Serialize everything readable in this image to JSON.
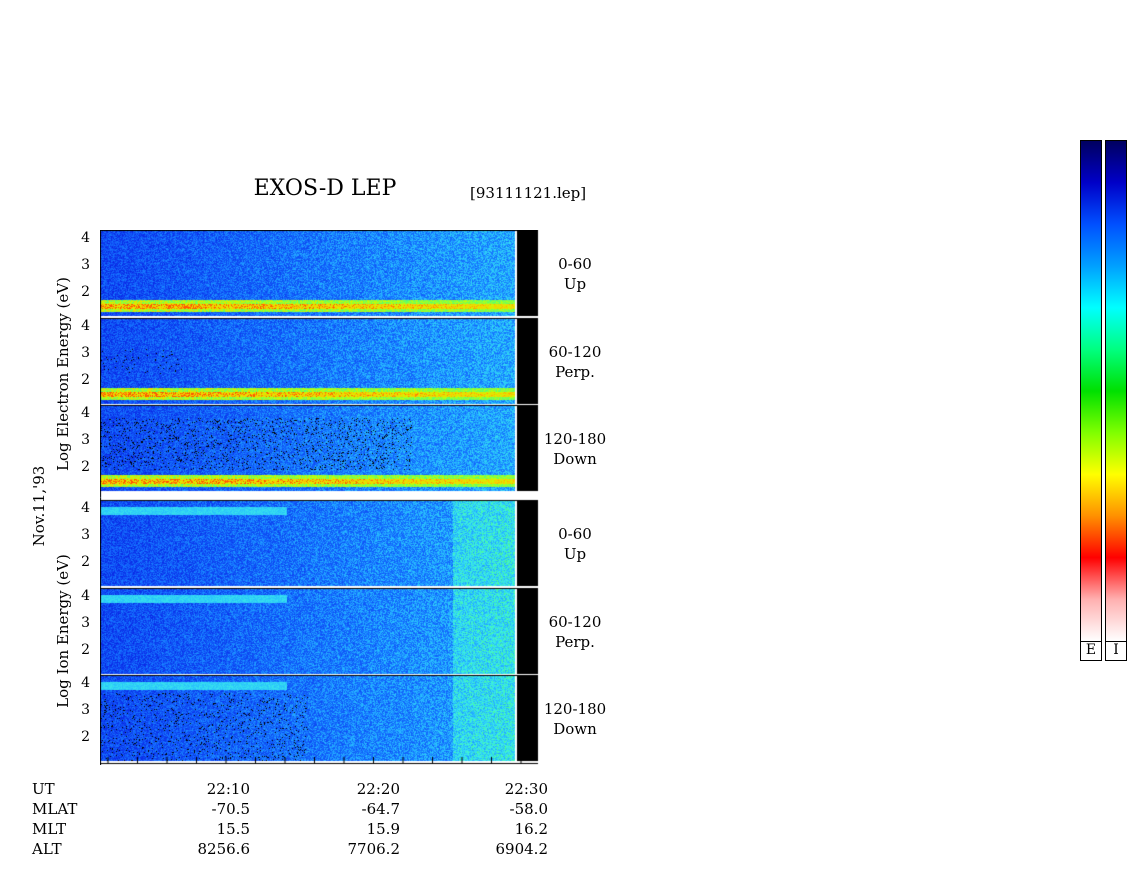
{
  "header": {
    "title": "EXOS-D LEP",
    "filename": "[93111121.lep]"
  },
  "axes": {
    "date_label": "Nov.11,'93",
    "electron_ylabel": "Log   Electron   Energy (eV)",
    "ion_ylabel": "Log   Ion   Energy (eV)",
    "energy_ticks": [
      "4",
      "3",
      "2"
    ]
  },
  "panels": {
    "electron": [
      {
        "range": "0-60",
        "direction": "Up"
      },
      {
        "range": "60-120",
        "direction": "Perp."
      },
      {
        "range": "120-180",
        "direction": "Down"
      }
    ],
    "ion": [
      {
        "range": "0-60",
        "direction": "Up"
      },
      {
        "range": "60-120",
        "direction": "Perp."
      },
      {
        "range": "120-180",
        "direction": "Down"
      }
    ]
  },
  "footer": {
    "row_labels": [
      "UT",
      "MLAT",
      "MLT",
      "ALT"
    ],
    "columns": [
      {
        "UT": "22:10",
        "MLAT": "-70.5",
        "MLT": "15.5",
        "ALT": "8256.6"
      },
      {
        "UT": "22:20",
        "MLAT": "-64.7",
        "MLT": "15.9",
        "ALT": "7706.2"
      },
      {
        "UT": "22:30",
        "MLAT": "-58.0",
        "MLT": "16.2",
        "ALT": "6904.2"
      }
    ]
  },
  "colorbars": {
    "electron_label": "E",
    "ion_label": "I",
    "scale_colors": [
      "#000060",
      "#0000c8",
      "#0050ff",
      "#00a0ff",
      "#00ffff",
      "#00ff80",
      "#00e000",
      "#80ff00",
      "#ffff00",
      "#ff9000",
      "#ff0000",
      "#ffb0b0",
      "#ffffff"
    ]
  },
  "chart_data": {
    "type": "heatmap",
    "title": "EXOS-D LEP",
    "x": {
      "label": "UT",
      "ticks": [
        "22:10",
        "22:20",
        "22:30"
      ]
    },
    "y": {
      "label": "Log Energy (eV)",
      "ticks": [
        4,
        3,
        2
      ]
    },
    "panels": [
      {
        "species": "Electron",
        "pitch_angle": "0-60",
        "direction": "Up"
      },
      {
        "species": "Electron",
        "pitch_angle": "60-120",
        "direction": "Perp."
      },
      {
        "species": "Electron",
        "pitch_angle": "120-180",
        "direction": "Down"
      },
      {
        "species": "Ion",
        "pitch_angle": "0-60",
        "direction": "Up"
      },
      {
        "species": "Ion",
        "pitch_angle": "60-120",
        "direction": "Perp."
      },
      {
        "species": "Ion",
        "pitch_angle": "120-180",
        "direction": "Down"
      }
    ]
  }
}
